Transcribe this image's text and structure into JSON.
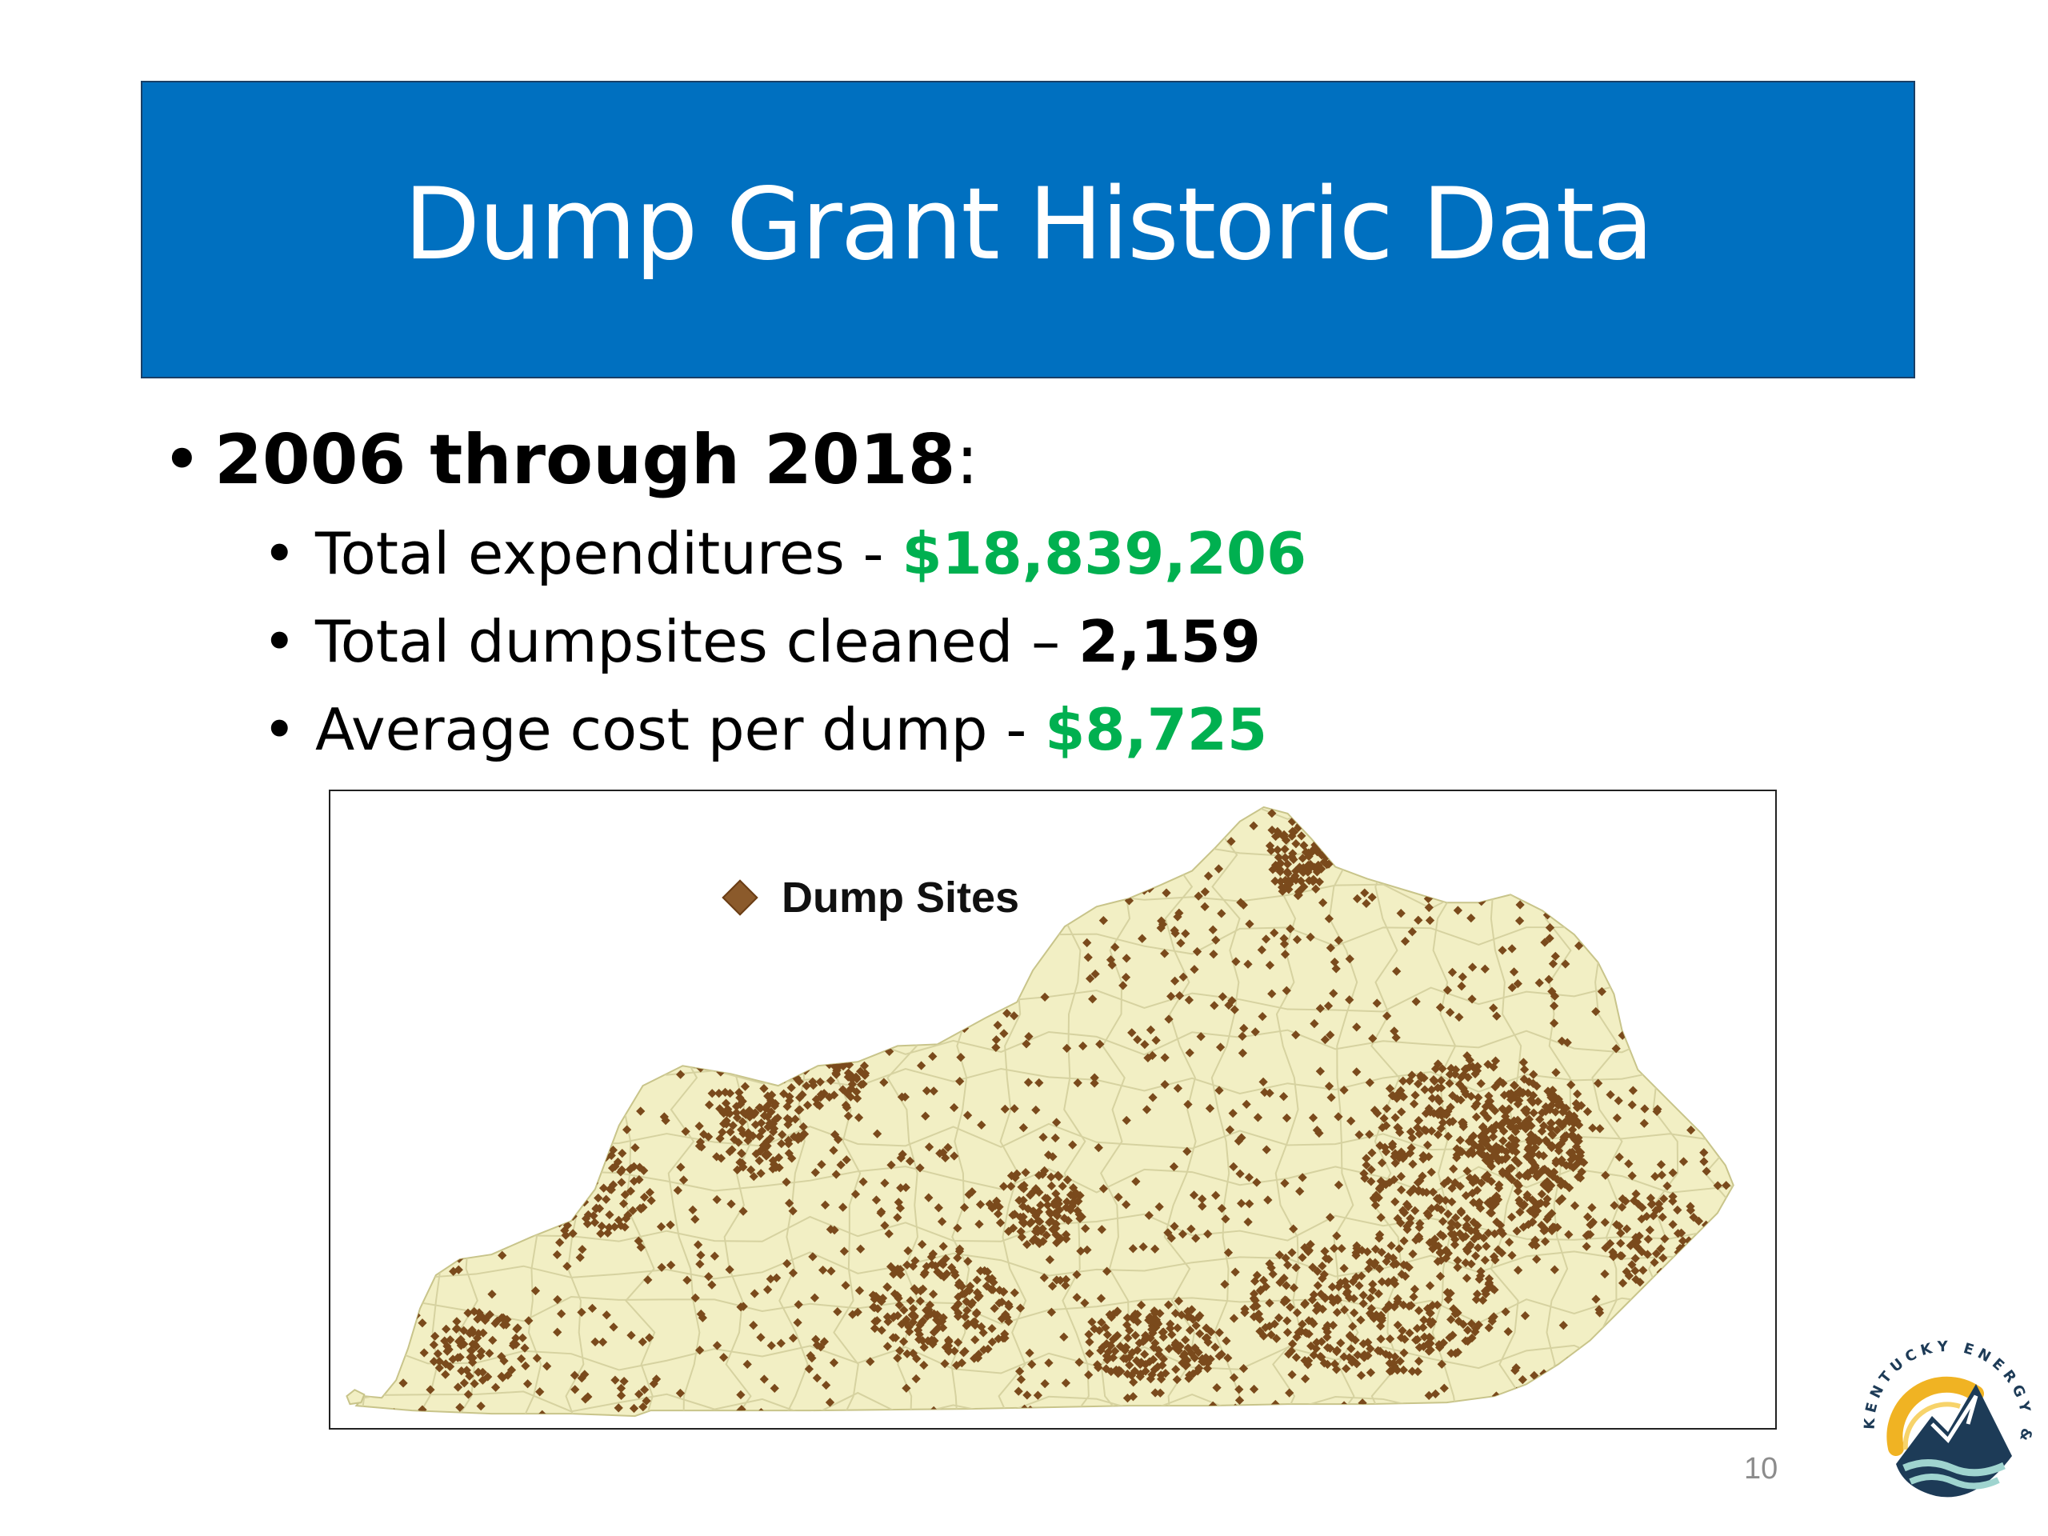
{
  "slide": {
    "title": "Dump Grant Historic Data",
    "page_number": "10"
  },
  "bullets": {
    "main": {
      "marker": "•",
      "label": "2006 through 2018",
      "suffix": ":"
    },
    "items": [
      {
        "marker": "•",
        "label": "Total expenditures - ",
        "value": "$18,839,206",
        "value_color": "#00b050"
      },
      {
        "marker": "•",
        "label": "Total dumpsites cleaned – ",
        "value": "2,159",
        "value_color": "#000000"
      },
      {
        "marker": "•",
        "label": "Average cost per dump - ",
        "value": "$8,725",
        "value_color": "#00b050"
      }
    ]
  },
  "map": {
    "legend_label": "Dump Sites",
    "state_fill": "#f2efc4",
    "county_line": "#d6d2a0",
    "marker_color": "#7a4a1c",
    "logo": {
      "text": "KENTUCKY ENERGY & ENVIRONMENT CABINET"
    }
  },
  "colors": {
    "title_bg": "#0070c0",
    "accent_green": "#00b050"
  }
}
